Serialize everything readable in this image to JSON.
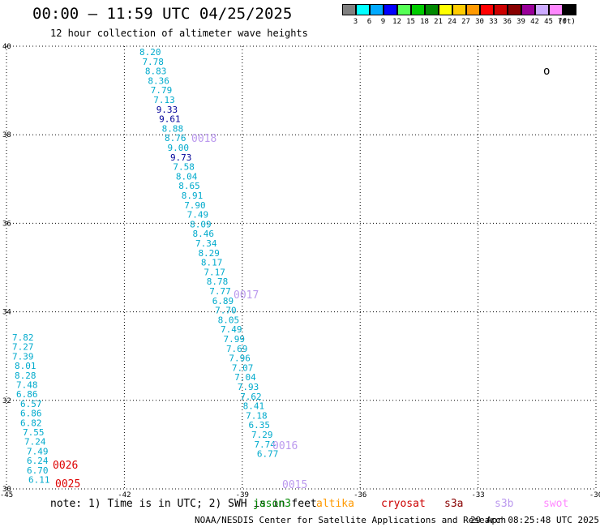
{
  "header": {
    "title": "00:00 – 11:59 UTC 04/25/2025",
    "subtitle": "12 hour collection of altimeter wave heights"
  },
  "colorbar": {
    "unit": "(ft)",
    "bins": [
      {
        "label": "3",
        "color": "#808080"
      },
      {
        "label": "6",
        "color": "#00ffff"
      },
      {
        "label": "9",
        "color": "#00aaff"
      },
      {
        "label": "12",
        "color": "#0000ff"
      },
      {
        "label": "15",
        "color": "#55ff55"
      },
      {
        "label": "18",
        "color": "#00cc00"
      },
      {
        "label": "21",
        "color": "#008800"
      },
      {
        "label": "24",
        "color": "#ffff00"
      },
      {
        "label": "27",
        "color": "#ffcc00"
      },
      {
        "label": "30",
        "color": "#ff9900"
      },
      {
        "label": "33",
        "color": "#ff0000"
      },
      {
        "label": "36",
        "color": "#cc0000"
      },
      {
        "label": "39",
        "color": "#880000"
      },
      {
        "label": "42",
        "color": "#990099"
      },
      {
        "label": "45",
        "color": "#ccaaff"
      },
      {
        "label": "70",
        "color": "#ff88ff"
      },
      {
        "label": "",
        "color": "#000000"
      }
    ]
  },
  "map": {
    "lon_ticks": [
      "-45",
      "-42",
      "-39",
      "-36",
      "-33",
      "-30"
    ],
    "lat_ticks": [
      "40",
      "38",
      "36",
      "34",
      "32",
      "30"
    ],
    "lon_range": [
      -45,
      -30
    ],
    "lat_range": [
      30,
      40
    ],
    "grid": "dotted",
    "stray_mark": "o"
  },
  "tracks": {
    "west": {
      "color": "#00aacc",
      "values": [
        "7.82",
        "7.27",
        "7.39",
        "8.01",
        "8.28",
        "7.48",
        "6.86",
        "6.57",
        "6.86",
        "6.82",
        "7.55",
        "7.24",
        "7.49",
        "6.24",
        "6.70",
        "6.11"
      ]
    },
    "main": {
      "color": "#00aacc",
      "high_color": "#000099",
      "values": [
        "8.20",
        "7.78",
        "8.83",
        "8.36",
        "7.79",
        "7.13",
        "9.33",
        "9.61",
        "8.88",
        "8.76",
        "9.00",
        "9.73",
        "7.58",
        "8.04",
        "8.65",
        "8.91",
        "7.90",
        "7.49",
        "8.09",
        "8.46",
        "7.34",
        "8.29",
        "8.17",
        "7.17",
        "8.78",
        "7.77",
        "6.89",
        "7.70",
        "8.05",
        "7.49",
        "7.99",
        "7.69",
        "7.96",
        "7.07",
        "7.04",
        "7.93",
        "7.62",
        "8.41",
        "7.18",
        "6.35",
        "7.29",
        "7.74",
        "6.77"
      ],
      "high_indices": [
        6,
        7,
        11
      ]
    }
  },
  "pass_labels": [
    {
      "text": "0018",
      "color": "#bb99ee"
    },
    {
      "text": "0017",
      "color": "#bb99ee"
    },
    {
      "text": "0016",
      "color": "#bb99ee"
    },
    {
      "text": "0015",
      "color": "#bb99ee"
    },
    {
      "text": "0026",
      "color": "#dd0000"
    },
    {
      "text": "0025",
      "color": "#dd0000"
    }
  ],
  "footer": {
    "note": "note:  1) Time is in UTC; 2) SWH is in feet",
    "satellites": [
      {
        "name": "jason3",
        "color": "#008800"
      },
      {
        "name": "altika",
        "color": "#ff9900"
      },
      {
        "name": "cryosat",
        "color": "#cc0000"
      },
      {
        "name": "s3a",
        "color": "#880000"
      },
      {
        "name": "s3b",
        "color": "#bb99ee"
      },
      {
        "name": "swot",
        "color": "#ff88ff"
      }
    ],
    "credit": "NOAA/NESDIS Center for Satellite Applications and Research",
    "timestamp": "29 Apr 08:25:48 UTC 2025"
  }
}
